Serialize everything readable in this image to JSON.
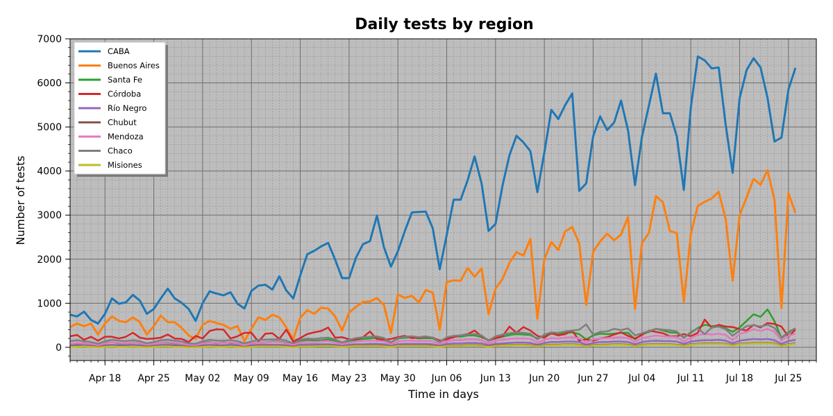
{
  "chart_data": {
    "type": "line",
    "title": "Daily tests by region",
    "xlabel": "Time in days",
    "ylabel": "Number of tests",
    "ylim": [
      -300,
      7000
    ],
    "yticks": [
      0,
      1000,
      2000,
      3000,
      4000,
      5000,
      6000,
      7000
    ],
    "xlim": [
      "2020-04-13",
      "2020-07-29"
    ],
    "xticks": [
      {
        "date": "2020-04-18",
        "label": "Apr 18"
      },
      {
        "date": "2020-04-25",
        "label": "Apr 25"
      },
      {
        "date": "2020-05-02",
        "label": "May 02"
      },
      {
        "date": "2020-05-09",
        "label": "May 09"
      },
      {
        "date": "2020-05-16",
        "label": "May 16"
      },
      {
        "date": "2020-05-23",
        "label": "May 23"
      },
      {
        "date": "2020-05-30",
        "label": "May 30"
      },
      {
        "date": "2020-06-06",
        "label": "Jun 06"
      },
      {
        "date": "2020-06-13",
        "label": "Jun 13"
      },
      {
        "date": "2020-06-20",
        "label": "Jun 20"
      },
      {
        "date": "2020-06-27",
        "label": "Jun 27"
      },
      {
        "date": "2020-07-04",
        "label": "Jul 04"
      },
      {
        "date": "2020-07-11",
        "label": "Jul 11"
      },
      {
        "date": "2020-07-18",
        "label": "Jul 18"
      },
      {
        "date": "2020-07-25",
        "label": "Jul 25"
      }
    ],
    "grid": true,
    "legend_position": "top-left",
    "x_start": "2020-04-13",
    "series": [
      {
        "name": "CABA",
        "color": "#1f77b4",
        "values": [
          740,
          700,
          810,
          620,
          540,
          760,
          1110,
          990,
          1020,
          1190,
          1060,
          760,
          870,
          1110,
          1330,
          1110,
          1010,
          870,
          600,
          1000,
          1270,
          1220,
          1180,
          1250,
          990,
          880,
          1280,
          1400,
          1420,
          1310,
          1610,
          1290,
          1110,
          1630,
          2110,
          2190,
          2290,
          2370,
          1990,
          1570,
          1570,
          2040,
          2340,
          2410,
          2990,
          2270,
          1830,
          2180,
          2640,
          3060,
          3070,
          3080,
          2700,
          1770,
          2550,
          3350,
          3350,
          3790,
          4330,
          3720,
          2640,
          2800,
          3670,
          4360,
          4800,
          4650,
          4450,
          3520,
          4420,
          5390,
          5180,
          5500,
          5760,
          3550,
          3720,
          4790,
          5240,
          4930,
          5100,
          5600,
          4920,
          3680,
          4780,
          5490,
          6210,
          5310,
          5310,
          4780,
          3570,
          5440,
          6600,
          6510,
          6330,
          6350,
          5050,
          3960,
          5650,
          6290,
          6560,
          6350,
          5660,
          4670,
          4760,
          5850,
          6340
        ]
      },
      {
        "name": "Buenos Aires",
        "color": "#ff7f0e",
        "values": [
          460,
          540,
          480,
          540,
          290,
          540,
          700,
          600,
          570,
          680,
          570,
          290,
          480,
          720,
          570,
          570,
          440,
          270,
          190,
          510,
          600,
          550,
          510,
          420,
          480,
          140,
          420,
          680,
          620,
          740,
          680,
          450,
          190,
          670,
          840,
          760,
          900,
          880,
          700,
          380,
          790,
          920,
          1030,
          1040,
          1120,
          960,
          320,
          1200,
          1120,
          1170,
          1020,
          1300,
          1240,
          400,
          1480,
          1520,
          1510,
          1800,
          1600,
          1790,
          750,
          1330,
          1550,
          1920,
          2160,
          2080,
          2460,
          650,
          2000,
          2390,
          2210,
          2630,
          2730,
          2360,
          960,
          2170,
          2400,
          2580,
          2430,
          2560,
          2960,
          870,
          2360,
          2600,
          3430,
          3290,
          2640,
          2590,
          1030,
          2570,
          3210,
          3300,
          3380,
          3530,
          2910,
          1510,
          3000,
          3400,
          3820,
          3690,
          4020,
          3340,
          890,
          3500,
          3050
        ]
      },
      {
        "name": "Santa Fe",
        "color": "#2ca02c",
        "values": [
          60,
          80,
          100,
          60,
          40,
          100,
          120,
          90,
          80,
          110,
          100,
          60,
          80,
          110,
          110,
          90,
          70,
          60,
          50,
          100,
          120,
          90,
          110,
          100,
          90,
          60,
          90,
          110,
          110,
          130,
          130,
          100,
          70,
          140,
          170,
          150,
          160,
          180,
          150,
          100,
          140,
          170,
          190,
          200,
          220,
          180,
          110,
          200,
          220,
          230,
          200,
          210,
          200,
          120,
          220,
          250,
          240,
          270,
          270,
          230,
          160,
          200,
          240,
          280,
          300,
          290,
          280,
          200,
          260,
          310,
          300,
          330,
          340,
          300,
          180,
          270,
          310,
          300,
          310,
          330,
          330,
          180,
          300,
          350,
          420,
          380,
          340,
          330,
          220,
          330,
          440,
          510,
          480,
          490,
          430,
          350,
          450,
          600,
          750,
          690,
          860,
          590,
          210,
          330,
          430
        ]
      },
      {
        "name": "Córdoba",
        "color": "#d62728",
        "values": [
          250,
          280,
          170,
          240,
          150,
          240,
          240,
          200,
          240,
          330,
          220,
          190,
          200,
          220,
          290,
          200,
          190,
          120,
          260,
          200,
          370,
          410,
          400,
          200,
          250,
          330,
          330,
          130,
          310,
          320,
          190,
          400,
          130,
          210,
          300,
          340,
          370,
          450,
          220,
          230,
          180,
          180,
          230,
          360,
          180,
          170,
          190,
          230,
          260,
          210,
          220,
          240,
          220,
          150,
          180,
          230,
          270,
          300,
          380,
          250,
          150,
          210,
          250,
          470,
          330,
          460,
          380,
          260,
          220,
          320,
          270,
          300,
          380,
          150,
          180,
          150,
          200,
          230,
          290,
          340,
          260,
          200,
          280,
          380,
          350,
          320,
          250,
          250,
          300,
          250,
          330,
          630,
          440,
          510,
          470,
          460,
          410,
          380,
          510,
          450,
          550,
          530,
          470,
          240,
          400
        ]
      },
      {
        "name": "Río Negro",
        "color": "#9467bd",
        "values": [
          40,
          50,
          50,
          40,
          30,
          50,
          60,
          50,
          50,
          60,
          50,
          30,
          40,
          60,
          60,
          50,
          40,
          30,
          30,
          50,
          60,
          50,
          50,
          60,
          50,
          30,
          50,
          60,
          60,
          60,
          60,
          50,
          30,
          60,
          70,
          70,
          70,
          70,
          60,
          40,
          60,
          70,
          70,
          80,
          80,
          70,
          40,
          70,
          80,
          80,
          80,
          80,
          70,
          40,
          80,
          90,
          90,
          100,
          100,
          90,
          50,
          80,
          90,
          100,
          110,
          110,
          100,
          60,
          100,
          120,
          120,
          130,
          130,
          120,
          60,
          100,
          120,
          120,
          130,
          130,
          120,
          70,
          120,
          140,
          150,
          140,
          140,
          130,
          80,
          130,
          150,
          160,
          160,
          170,
          150,
          90,
          150,
          170,
          190,
          180,
          190,
          160,
          80,
          140,
          170
        ]
      },
      {
        "name": "Chubut",
        "color": "#8c564b",
        "values": [
          20,
          20,
          30,
          20,
          10,
          20,
          30,
          20,
          20,
          30,
          20,
          10,
          20,
          30,
          30,
          20,
          20,
          10,
          10,
          20,
          30,
          20,
          20,
          30,
          20,
          10,
          20,
          30,
          30,
          30,
          30,
          20,
          10,
          30,
          30,
          30,
          40,
          40,
          30,
          20,
          30,
          40,
          40,
          40,
          40,
          30,
          20,
          40,
          40,
          40,
          40,
          40,
          30,
          20,
          40,
          40,
          40,
          50,
          50,
          40,
          20,
          40,
          50,
          50,
          60,
          60,
          50,
          30,
          50,
          60,
          60,
          70,
          70,
          60,
          30,
          50,
          60,
          60,
          70,
          70,
          60,
          30,
          60,
          70,
          80,
          70,
          70,
          60,
          40,
          70,
          80,
          90,
          90,
          90,
          80,
          50,
          80,
          90,
          100,
          100,
          100,
          90,
          40,
          70,
          90
        ]
      },
      {
        "name": "Mendoza",
        "color": "#e377c2",
        "values": [
          80,
          100,
          90,
          80,
          50,
          90,
          120,
          100,
          90,
          110,
          100,
          60,
          80,
          110,
          120,
          100,
          80,
          60,
          50,
          90,
          110,
          100,
          100,
          110,
          90,
          50,
          90,
          110,
          110,
          120,
          120,
          90,
          60,
          110,
          130,
          120,
          130,
          140,
          110,
          70,
          110,
          130,
          140,
          150,
          150,
          130,
          70,
          130,
          150,
          150,
          140,
          150,
          130,
          80,
          140,
          160,
          160,
          180,
          180,
          160,
          90,
          150,
          170,
          190,
          200,
          200,
          190,
          110,
          170,
          210,
          200,
          220,
          230,
          200,
          110,
          180,
          200,
          210,
          220,
          230,
          210,
          120,
          210,
          240,
          270,
          250,
          240,
          230,
          130,
          220,
          280,
          300,
          290,
          310,
          280,
          160,
          300,
          350,
          410,
          370,
          420,
          350,
          150,
          260,
          310
        ]
      },
      {
        "name": "Chaco",
        "color": "#7f7f7f",
        "values": [
          140,
          160,
          140,
          120,
          80,
          140,
          170,
          150,
          140,
          160,
          140,
          90,
          120,
          160,
          170,
          150,
          130,
          90,
          80,
          140,
          170,
          150,
          150,
          160,
          140,
          90,
          130,
          170,
          170,
          180,
          180,
          150,
          90,
          170,
          200,
          190,
          210,
          220,
          180,
          110,
          170,
          210,
          230,
          240,
          250,
          210,
          110,
          210,
          240,
          250,
          230,
          250,
          220,
          120,
          230,
          260,
          270,
          290,
          300,
          270,
          150,
          250,
          290,
          320,
          340,
          330,
          310,
          180,
          290,
          340,
          330,
          360,
          380,
          400,
          520,
          290,
          350,
          360,
          420,
          390,
          430,
          270,
          320,
          370,
          420,
          400,
          390,
          360,
          210,
          350,
          430,
          300,
          450,
          470,
          410,
          260,
          380,
          480,
          500,
          470,
          510,
          440,
          220,
          350,
          430
        ]
      },
      {
        "name": "Misiones",
        "color": "#bcbd22",
        "values": [
          10,
          10,
          20,
          10,
          0,
          10,
          20,
          10,
          10,
          20,
          10,
          0,
          10,
          20,
          20,
          10,
          10,
          0,
          0,
          10,
          20,
          10,
          10,
          20,
          10,
          0,
          10,
          20,
          20,
          20,
          20,
          10,
          0,
          20,
          20,
          20,
          30,
          30,
          20,
          10,
          20,
          30,
          30,
          30,
          30,
          20,
          10,
          30,
          30,
          30,
          30,
          30,
          20,
          10,
          30,
          30,
          30,
          40,
          40,
          30,
          10,
          30,
          40,
          40,
          50,
          50,
          40,
          20,
          40,
          50,
          50,
          60,
          60,
          50,
          20,
          40,
          50,
          50,
          60,
          60,
          50,
          20,
          50,
          60,
          70,
          60,
          60,
          50,
          30,
          60,
          70,
          80,
          80,
          80,
          70,
          40,
          70,
          80,
          90,
          90,
          90,
          80,
          30,
          60,
          80
        ]
      }
    ]
  }
}
